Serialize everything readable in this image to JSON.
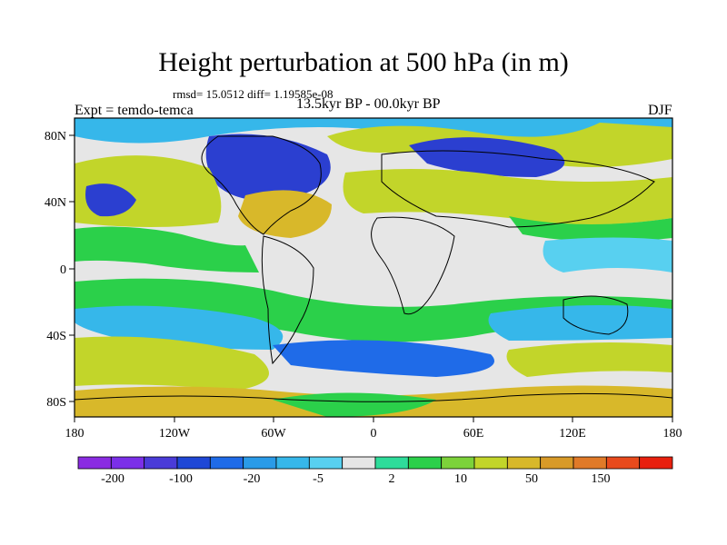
{
  "header": {
    "title": "Height perturbation at 500 hPa (in m)",
    "stats": "rmsd= 15.0512 diff= 1.19585e-08",
    "left_label": "Expt = temdo-temca",
    "center_label": "13.5kyr BP - 00.0kyr BP",
    "right_label": "DJF"
  },
  "axes": {
    "lat_labels": [
      "80N",
      "40N",
      "0",
      "40S",
      "80S"
    ],
    "lon_labels": [
      "180",
      "120W",
      "60W",
      "0",
      "60E",
      "120E",
      "180"
    ]
  },
  "colorbar": {
    "labels": [
      "-200",
      "-100",
      "-20",
      "-5",
      "2",
      "10",
      "50",
      "150"
    ],
    "colors": [
      "#8a2be2",
      "#7b2fe8",
      "#4a3bd8",
      "#1f47d6",
      "#1f6be8",
      "#2a9be8",
      "#36b7ea",
      "#58d0f0",
      "#e6e6e6",
      "#2edc9a",
      "#2bd04a",
      "#7cd23a",
      "#c2d52a",
      "#d8b82a",
      "#d89a28",
      "#e07a28",
      "#e84a1c",
      "#e8200e"
    ]
  },
  "map_palette": {
    "land_gray": "#e6e6e6",
    "light_blue": "#36b7ea",
    "mid_blue": "#1f6be8",
    "deep_blue": "#2b3fd0",
    "cyan": "#58d0f0",
    "green": "#2bd04a",
    "teal": "#2edc9a",
    "lime": "#7cd23a",
    "yellow": "#c2d52a",
    "orange": "#d8b82a"
  }
}
